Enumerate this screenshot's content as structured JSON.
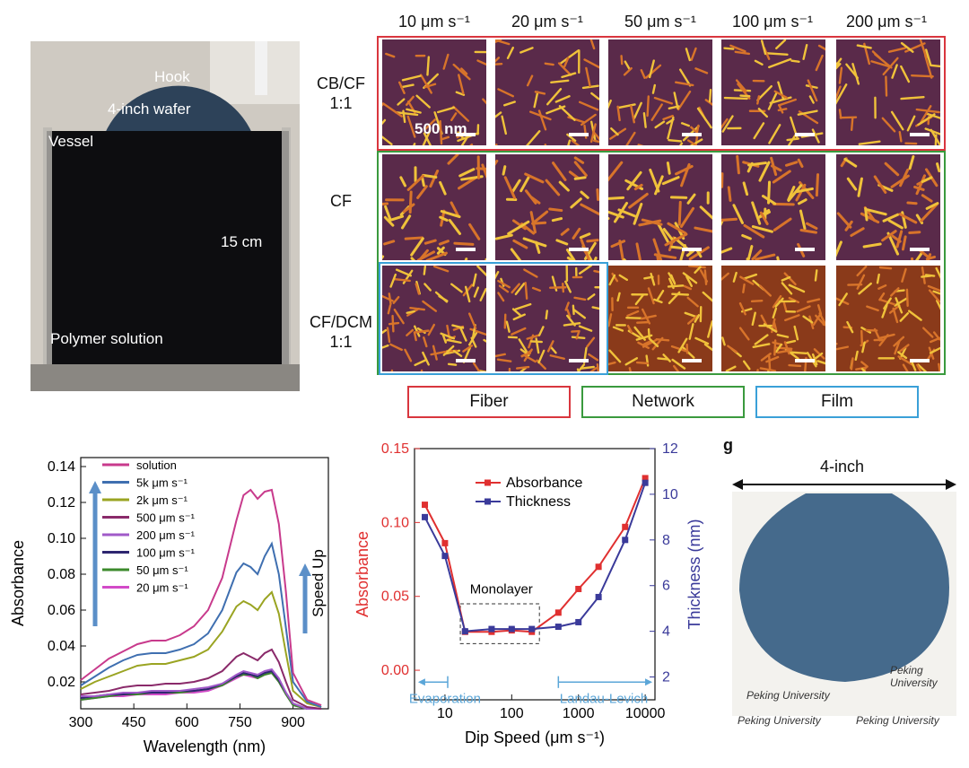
{
  "photo": {
    "hook_label": "Hook",
    "wafer_label": "4-inch wafer",
    "vessel_label": "Vessel",
    "height_label": "15 cm",
    "solution_label": "Polymer solution"
  },
  "afm": {
    "speeds": [
      "10 μm s⁻¹",
      "20 μm s⁻¹",
      "50 μm s⁻¹",
      "100 μm s⁻¹",
      "200 μm s⁻¹"
    ],
    "rows": [
      "CB/CF\n1:1",
      "CF",
      "CF/DCM\n1:1"
    ],
    "scale_label": "500 nm",
    "morphologies": [
      {
        "label": "Fiber",
        "color": "#d9363e"
      },
      {
        "label": "Network",
        "color": "#3a9a3e"
      },
      {
        "label": "Film",
        "color": "#3aa0d8"
      }
    ]
  },
  "wafer_photo": {
    "panel_letter": "g",
    "size_label": "4-inch",
    "watermark_texts": [
      "Peking University",
      "Peking University",
      "Peking University",
      "Peking University"
    ]
  },
  "chart_data": [
    {
      "type": "line",
      "xlabel": "Wavelength (nm)",
      "ylabel": "Absorbance",
      "xlim": [
        300,
        1000
      ],
      "ylim": [
        0.005,
        0.145
      ],
      "xticks": [
        300,
        450,
        600,
        750,
        900
      ],
      "yticks": [
        0.02,
        0.04,
        0.06,
        0.08,
        0.1,
        0.12,
        0.14
      ],
      "annotation": "Speed Up",
      "legend_position": "top-left",
      "x": [
        300,
        340,
        380,
        420,
        460,
        500,
        540,
        580,
        620,
        660,
        700,
        740,
        760,
        780,
        800,
        820,
        840,
        860,
        880,
        900,
        940,
        980
      ],
      "series": [
        {
          "name": "solution",
          "color": "#c83a8c",
          "values": [
            0.021,
            0.027,
            0.033,
            0.037,
            0.041,
            0.043,
            0.043,
            0.046,
            0.051,
            0.06,
            0.078,
            0.11,
            0.124,
            0.127,
            0.122,
            0.126,
            0.127,
            0.108,
            0.07,
            0.025,
            0.01,
            0.007
          ]
        },
        {
          "name": "5k μm s⁻¹",
          "color": "#3f6fb0",
          "values": [
            0.018,
            0.023,
            0.028,
            0.032,
            0.035,
            0.036,
            0.036,
            0.038,
            0.041,
            0.047,
            0.06,
            0.081,
            0.086,
            0.084,
            0.08,
            0.09,
            0.097,
            0.08,
            0.05,
            0.02,
            0.009,
            0.006
          ]
        },
        {
          "name": "2k μm s⁻¹",
          "color": "#9aa422",
          "values": [
            0.016,
            0.02,
            0.023,
            0.026,
            0.029,
            0.03,
            0.03,
            0.032,
            0.034,
            0.038,
            0.048,
            0.062,
            0.065,
            0.063,
            0.06,
            0.066,
            0.07,
            0.058,
            0.036,
            0.015,
            0.008,
            0.006
          ]
        },
        {
          "name": "500 μm s⁻¹",
          "color": "#8a2a6a",
          "values": [
            0.013,
            0.014,
            0.015,
            0.017,
            0.018,
            0.018,
            0.019,
            0.019,
            0.02,
            0.022,
            0.026,
            0.034,
            0.036,
            0.034,
            0.032,
            0.036,
            0.038,
            0.031,
            0.02,
            0.01,
            0.006,
            0.005
          ]
        },
        {
          "name": "200 μm s⁻¹",
          "color": "#a05ac8",
          "values": [
            0.012,
            0.012,
            0.013,
            0.014,
            0.014,
            0.015,
            0.015,
            0.015,
            0.016,
            0.017,
            0.019,
            0.024,
            0.026,
            0.025,
            0.024,
            0.026,
            0.027,
            0.022,
            0.014,
            0.008,
            0.005,
            0.005
          ]
        },
        {
          "name": "100 μm s⁻¹",
          "color": "#2e2670",
          "values": [
            0.011,
            0.012,
            0.013,
            0.013,
            0.014,
            0.014,
            0.014,
            0.015,
            0.015,
            0.016,
            0.019,
            0.023,
            0.025,
            0.024,
            0.023,
            0.025,
            0.026,
            0.021,
            0.014,
            0.008,
            0.005,
            0.005
          ]
        },
        {
          "name": "50 μm s⁻¹",
          "color": "#3c8a2c",
          "values": [
            0.01,
            0.011,
            0.012,
            0.013,
            0.013,
            0.014,
            0.014,
            0.014,
            0.015,
            0.016,
            0.018,
            0.023,
            0.024,
            0.024,
            0.022,
            0.024,
            0.025,
            0.02,
            0.013,
            0.007,
            0.005,
            0.005
          ]
        },
        {
          "name": "20 μm s⁻¹",
          "color": "#d24ac8",
          "values": [
            0.01,
            0.011,
            0.012,
            0.012,
            0.013,
            0.013,
            0.013,
            0.014,
            0.014,
            0.015,
            0.018,
            0.022,
            0.024,
            0.023,
            0.022,
            0.024,
            0.025,
            0.02,
            0.013,
            0.007,
            0.005,
            0.005
          ]
        }
      ]
    },
    {
      "type": "line",
      "xlabel": "Dip Speed (μm s⁻¹)",
      "ylabel": "Absorbance",
      "y2label": "Thickness (nm)",
      "xscale": "log",
      "xlim": [
        3.5,
        14000
      ],
      "xticks": [
        10,
        100,
        1000,
        10000
      ],
      "xtick_labels": [
        "10",
        "100",
        "1000",
        "10000"
      ],
      "ylim": [
        -0.02,
        0.15
      ],
      "yticks": [
        0.0,
        0.05,
        0.1,
        0.15
      ],
      "y2lim": [
        1.0,
        12.0
      ],
      "y2ticks": [
        2,
        4,
        6,
        8,
        10,
        12
      ],
      "annotations": [
        "Monolayer",
        "Evaporation",
        "Landau-Levich"
      ],
      "legend_position": "top-center",
      "x": [
        5,
        10,
        20,
        50,
        100,
        200,
        500,
        1000,
        2000,
        5000,
        10000
      ],
      "series": [
        {
          "name": "Absorbance",
          "axis": "left",
          "color": "#e03030",
          "values": [
            0.112,
            0.086,
            0.026,
            0.026,
            0.027,
            0.026,
            0.039,
            0.055,
            0.07,
            0.097,
            0.13
          ]
        },
        {
          "name": "Thickness",
          "axis": "right",
          "color": "#3a3a9a",
          "values": [
            9.0,
            7.3,
            4.0,
            4.1,
            4.1,
            4.1,
            4.2,
            4.4,
            5.5,
            8.0,
            10.5
          ]
        }
      ]
    }
  ]
}
